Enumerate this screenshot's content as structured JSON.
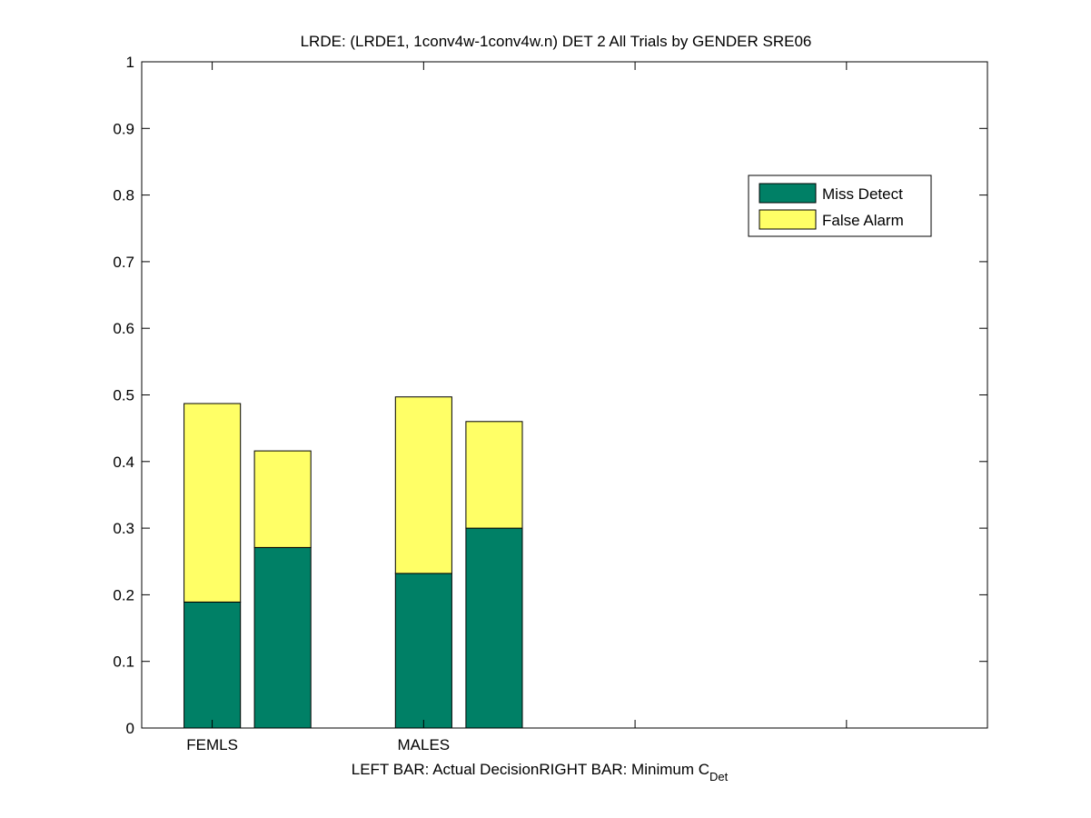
{
  "chart_data": {
    "type": "bar",
    "stacked": true,
    "title": "LRDE: (LRDE1, 1conv4w-1conv4w.n) DET 2 All Trials by GENDER SRE06",
    "xlabel_parts": {
      "left_bar_note": "LEFT BAR: Actual Decision",
      "right_bar_note_main": "RIGHT BAR: Minimum C",
      "right_bar_note_sub": "Det"
    },
    "categories": [
      "FEMLS",
      "MALES"
    ],
    "ylim": [
      0,
      1
    ],
    "yticks": [
      "0",
      "0.1",
      "0.2",
      "0.3",
      "0.4",
      "0.5",
      "0.6",
      "0.7",
      "0.8",
      "0.9",
      "1"
    ],
    "groups": [
      {
        "category": "FEMLS",
        "bars": [
          {
            "which": "left",
            "miss": 0.189,
            "false_alarm": 0.298
          },
          {
            "which": "right",
            "miss": 0.271,
            "false_alarm": 0.145
          }
        ]
      },
      {
        "category": "MALES",
        "bars": [
          {
            "which": "left",
            "miss": 0.232,
            "false_alarm": 0.265
          },
          {
            "which": "right",
            "miss": 0.3,
            "false_alarm": 0.16
          }
        ]
      }
    ],
    "series": [
      {
        "name": "Miss Detect",
        "color": "#008066"
      },
      {
        "name": "False Alarm",
        "color": "#ffff66"
      }
    ],
    "legend_position": "top-right",
    "grid": false
  }
}
